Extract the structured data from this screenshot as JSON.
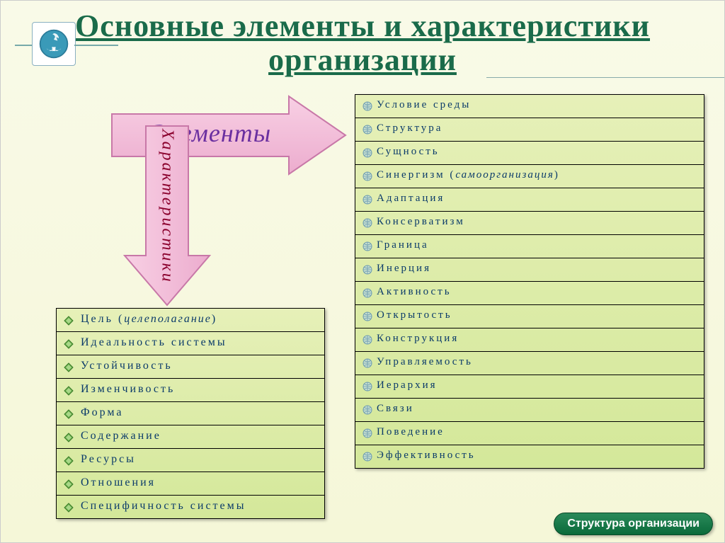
{
  "title": "Основные элементы и характеристики организации",
  "arrows": {
    "right_label": "Элементы",
    "down_label": "Характеристики"
  },
  "colors": {
    "title": "#1a6b4a",
    "arrow_fill": "#f2b8d8",
    "arrow_stroke": "#d070a8",
    "arrow_right_text": "#6a2fa0",
    "arrow_down_text": "#8a002c",
    "cell_text": "#0a3a6a",
    "bullet_green": "#3a8a3a",
    "bullet_blue": "#5a8ab0"
  },
  "left_table": {
    "bullet_style": "diamond-green",
    "items": [
      {
        "text": "Цель (",
        "italic": "целеполагание",
        "after": ")"
      },
      {
        "text": "Идеальность системы"
      },
      {
        "text": "Устойчивость"
      },
      {
        "text": "Изменчивость"
      },
      {
        "text": "Форма"
      },
      {
        "text": "Содержание"
      },
      {
        "text": "Ресурсы"
      },
      {
        "text": "Отношения"
      },
      {
        "text": "Специфичность системы"
      }
    ]
  },
  "right_table": {
    "bullet_style": "globe-blue",
    "items": [
      {
        "text": "Условие среды"
      },
      {
        "text": "Структура"
      },
      {
        "text": "Сущность"
      },
      {
        "text": "Синергизм (",
        "italic": "самоорганизация",
        "after": ")"
      },
      {
        "text": "Адаптация"
      },
      {
        "text": "Консерватизм"
      },
      {
        "text": "Граница"
      },
      {
        "text": "Инерция"
      },
      {
        "text": "Активность"
      },
      {
        "text": "Открытость"
      },
      {
        "text": "Конструкция"
      },
      {
        "text": "Управляемость"
      },
      {
        "text": "Иерархия"
      },
      {
        "text": "Связи"
      },
      {
        "text": "Поведение"
      },
      {
        "text": "Эффективность"
      }
    ]
  },
  "footer_button": "Структура организации"
}
